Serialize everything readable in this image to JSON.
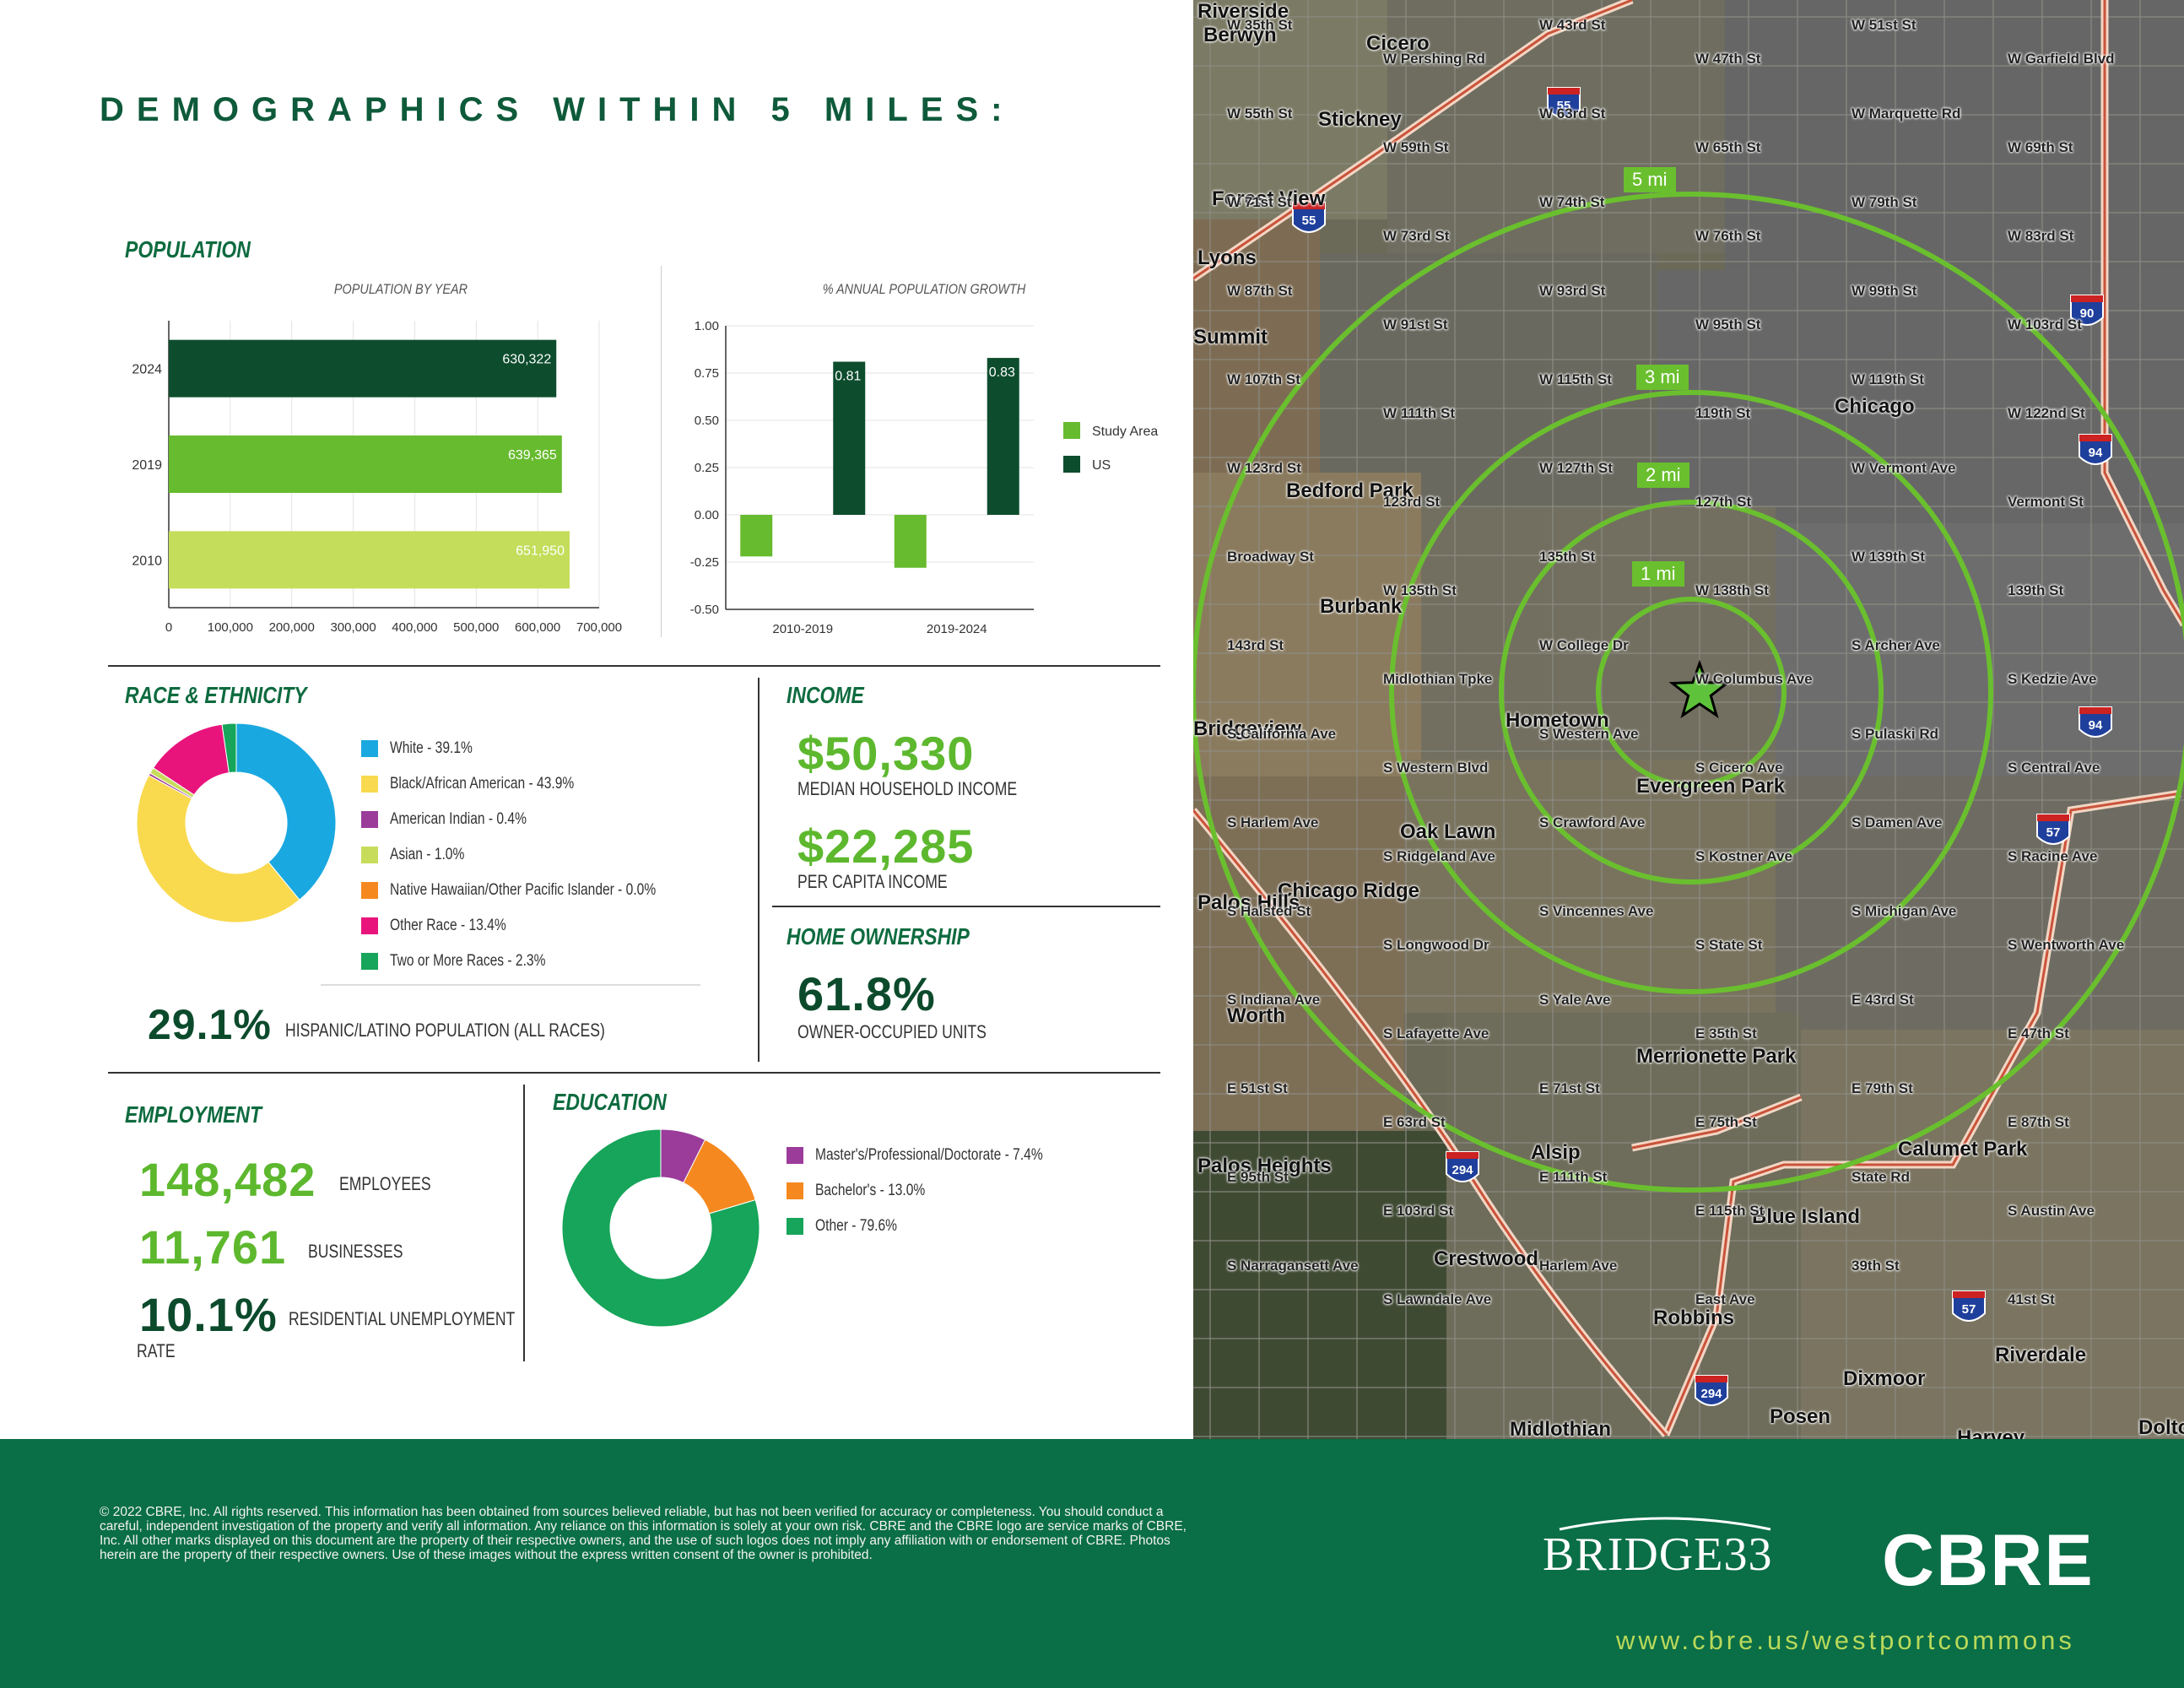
{
  "header": {
    "title": "DEMOGRAPHICS WITHIN 5 MILES:"
  },
  "population": {
    "section_title": "POPULATION",
    "by_year_title": "POPULATION BY YEAR",
    "growth_title": "% ANNUAL POPULATION GROWTH"
  },
  "race": {
    "section_title": "RACE & ETHNICITY",
    "legend": [
      {
        "label": "White - 39.1%",
        "color": "#1aa8e0"
      },
      {
        "label": "Black/African American - 43.9%",
        "color": "#f9d94e"
      },
      {
        "label": "American Indian - 0.4%",
        "color": "#9b3c9b"
      },
      {
        "label": "Asian - 1.0%",
        "color": "#c7dc5a"
      },
      {
        "label": "Native Hawaiian/Other Pacific Islander - 0.0%",
        "color": "#f5891f"
      },
      {
        "label": "Other Race - 13.4%",
        "color": "#e8147c"
      },
      {
        "label": "Two or More Races - 2.3%",
        "color": "#16a55a"
      }
    ],
    "hispanic_value": "29.1%",
    "hispanic_caption": "HISPANIC/LATINO POPULATION (ALL RACES)"
  },
  "income": {
    "section_title": "INCOME",
    "median_value": "$50,330",
    "median_caption": "MEDIAN HOUSEHOLD INCOME",
    "per_capita_value": "$22,285",
    "per_capita_caption": "PER CAPITA INCOME"
  },
  "home_ownership": {
    "section_title": "HOME OWNERSHIP",
    "value": "61.8%",
    "caption": "OWNER-OCCUPIED UNITS"
  },
  "employment": {
    "section_title": "EMPLOYMENT",
    "employees_value": "148,482",
    "employees_caption": "EMPLOYEES",
    "businesses_value": "11,761",
    "businesses_caption": "BUSINESSES",
    "unemployment_value": "10.1%",
    "unemployment_caption": "RESIDENTIAL UNEMPLOYMENT",
    "unemployment_caption2": "RATE"
  },
  "education": {
    "section_title": "EDUCATION",
    "legend": [
      {
        "label": "Master's/Professional/Doctorate - 7.4%",
        "color": "#9b3c9b"
      },
      {
        "label": "Bachelor's - 13.0%",
        "color": "#f5891f"
      },
      {
        "label": "Other - 79.6%",
        "color": "#16a55a"
      }
    ]
  },
  "chart_data": [
    {
      "type": "bar",
      "orientation": "horizontal",
      "title": "POPULATION BY YEAR",
      "categories": [
        "2024",
        "2019",
        "2010"
      ],
      "values": [
        630322,
        639365,
        651950
      ],
      "value_labels": [
        "630,322",
        "639,365",
        "651,950"
      ],
      "colors": [
        "#0d4d2d",
        "#67bb2e",
        "#c4dd5a"
      ],
      "xlim": [
        0,
        700000
      ],
      "x_ticks": [
        "0",
        "100,000",
        "200,000",
        "300,000",
        "400,000",
        "500,000",
        "600,000",
        "700,000"
      ]
    },
    {
      "type": "bar",
      "title": "% ANNUAL POPULATION GROWTH",
      "categories": [
        "2010-2019",
        "2019-2024"
      ],
      "series": [
        {
          "name": "Study Area",
          "values": [
            -0.22,
            -0.28
          ],
          "color": "#67bb2e"
        },
        {
          "name": "US",
          "values": [
            0.81,
            0.83
          ],
          "color": "#0d4d2d"
        }
      ],
      "value_labels": [
        "0.81",
        "0.83"
      ],
      "ylim": [
        -0.5,
        1.0
      ],
      "y_ticks": [
        "1.00",
        "0.75",
        "0.50",
        "0.25",
        "0.00",
        "-0.25",
        "-0.50"
      ],
      "legend_position": "right"
    },
    {
      "type": "pie",
      "title": "RACE & ETHNICITY",
      "labels": [
        "White",
        "Black/African American",
        "American Indian",
        "Asian",
        "Native Hawaiian/Other Pacific Islander",
        "Other Race",
        "Two or More Races"
      ],
      "values": [
        39.1,
        43.9,
        0.4,
        1.0,
        0.0,
        13.4,
        2.3
      ],
      "colors": [
        "#1aa8e0",
        "#f9d94e",
        "#9b3c9b",
        "#c7dc5a",
        "#f5891f",
        "#e8147c",
        "#16a55a"
      ]
    },
    {
      "type": "pie",
      "title": "EDUCATION",
      "labels": [
        "Master's/Professional/Doctorate",
        "Bachelor's",
        "Other"
      ],
      "values": [
        7.4,
        13.0,
        79.6
      ],
      "colors": [
        "#9b3c9b",
        "#f5891f",
        "#16a55a"
      ]
    }
  ],
  "map": {
    "ring_labels": [
      "5 mi",
      "3 mi",
      "2 mi",
      "1 mi"
    ],
    "ring_color": "#6abf2e",
    "city_labels": [
      "Riverside",
      "Berwyn",
      "Cicero",
      "Stickney",
      "Forest View",
      "Lyons",
      "Summit",
      "Bedford Park",
      "Chicago",
      "Burbank",
      "Bridgeview",
      "Hometown",
      "Evergreen Park",
      "Oak Lawn",
      "Chicago Ridge",
      "Palos Hills",
      "Worth",
      "Merrionette Park",
      "Palos Heights",
      "Alsip",
      "Calumet Park",
      "Blue Island",
      "Crestwood",
      "Robbins",
      "Riverdale",
      "Dixmoor",
      "Posen",
      "Midlothian",
      "Harvey",
      "Dolton"
    ],
    "street_labels": [
      "W 35th St",
      "W Pershing Rd",
      "W 43rd St",
      "W 47th St",
      "W 51st St",
      "W Garfield Blvd",
      "W 55th St",
      "W 59th St",
      "W 63rd St",
      "W 65th St",
      "W Marquette Rd",
      "W 69th St",
      "W 71st St",
      "W 73rd St",
      "W 74th St",
      "W 76th St",
      "W 79th St",
      "W 83rd St",
      "W 87th St",
      "W 91st St",
      "W 93rd St",
      "W 95th St",
      "W 99th St",
      "W 103rd St",
      "W 107th St",
      "W 111th St",
      "W 115th St",
      "119th St",
      "W 119th St",
      "W 122nd St",
      "W 123rd St",
      "123rd St",
      "W 127th St",
      "127th St",
      "W Vermont Ave",
      "Vermont St",
      "Broadway St",
      "W 135th St",
      "135th St",
      "W 138th St",
      "W 139th St",
      "139th St",
      "143rd St",
      "Midlothian Tpke",
      "W College Dr",
      "W Columbus Ave",
      "S Archer Ave",
      "S Kedzie Ave",
      "S California Ave",
      "S Western Blvd",
      "S Western Ave",
      "S Cicero Ave",
      "S Pulaski Rd",
      "S Central Ave",
      "S Harlem Ave",
      "S Ridgeland Ave",
      "S Crawford Ave",
      "S Kostner Ave",
      "S Damen Ave",
      "S Racine Ave",
      "S Halsted St",
      "S Longwood Dr",
      "S Vincennes Ave",
      "S State St",
      "S Michigan Ave",
      "S Wentworth Ave",
      "S Indiana Ave",
      "S Lafayette Ave",
      "S Yale Ave",
      "E 35th St",
      "E 43rd St",
      "E 47th St",
      "E 51st St",
      "E 63rd St",
      "E 71st St",
      "E 75th St",
      "E 79th St",
      "E 87th St",
      "E 95th St",
      "E 103rd St",
      "E 111th St",
      "E 115th St",
      "State Rd",
      "S Austin Ave",
      "S Narragansett Ave",
      "S Lawndale Ave",
      "Harlem Ave",
      "East Ave",
      "39th St",
      "41st St"
    ],
    "highway_shields": [
      "55",
      "55",
      "90",
      "94",
      "94",
      "57",
      "57",
      "294",
      "294"
    ]
  },
  "footer": {
    "disclaimer": "© 2022 CBRE, Inc. All rights reserved. This information has been obtained from sources believed reliable, but has not been verified for accuracy or completeness. You should conduct a careful, independent investigation of the property and verify all information. Any reliance on this information is solely at your own risk. CBRE and the CBRE logo are service marks of CBRE, Inc. All other marks displayed on this document are the property of their respective owners, and the use of such logos does not imply any affiliation with or endorsement of CBRE. Photos herein are the property of their respective owners. Use of these images without the express written consent of the owner is prohibited.",
    "bridge_logo": "BRIDGE33",
    "cbre_logo": "CBRE",
    "website": "www.cbre.us/westportcommons"
  }
}
